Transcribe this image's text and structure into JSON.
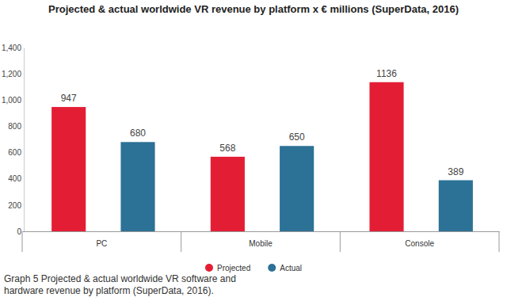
{
  "chart_data": {
    "type": "bar",
    "title": "Projected & actual worldwide VR revenue by platform x € millions (SuperData, 2016)",
    "caption": [
      "Graph 5 Projected & actual worldwide VR software and",
      "hardware revenue by platform (SuperData, 2016)."
    ],
    "categories": [
      "PC",
      "Mobile",
      "Console"
    ],
    "series": [
      {
        "name": "Projected",
        "color": "#e31e34",
        "values": [
          947,
          568,
          1136
        ]
      },
      {
        "name": "Actual",
        "color": "#2c7196",
        "values": [
          680,
          650,
          389
        ]
      }
    ],
    "ylim": [
      0,
      1400
    ],
    "yticks": [
      0,
      200,
      400,
      600,
      800,
      {
        "value": 1000,
        "label": "1,000"
      },
      {
        "value": 1200,
        "label": "1,200"
      },
      {
        "value": 1400,
        "label": "1,400"
      }
    ],
    "grid": false,
    "legend": "bottom",
    "data_labels": true
  }
}
